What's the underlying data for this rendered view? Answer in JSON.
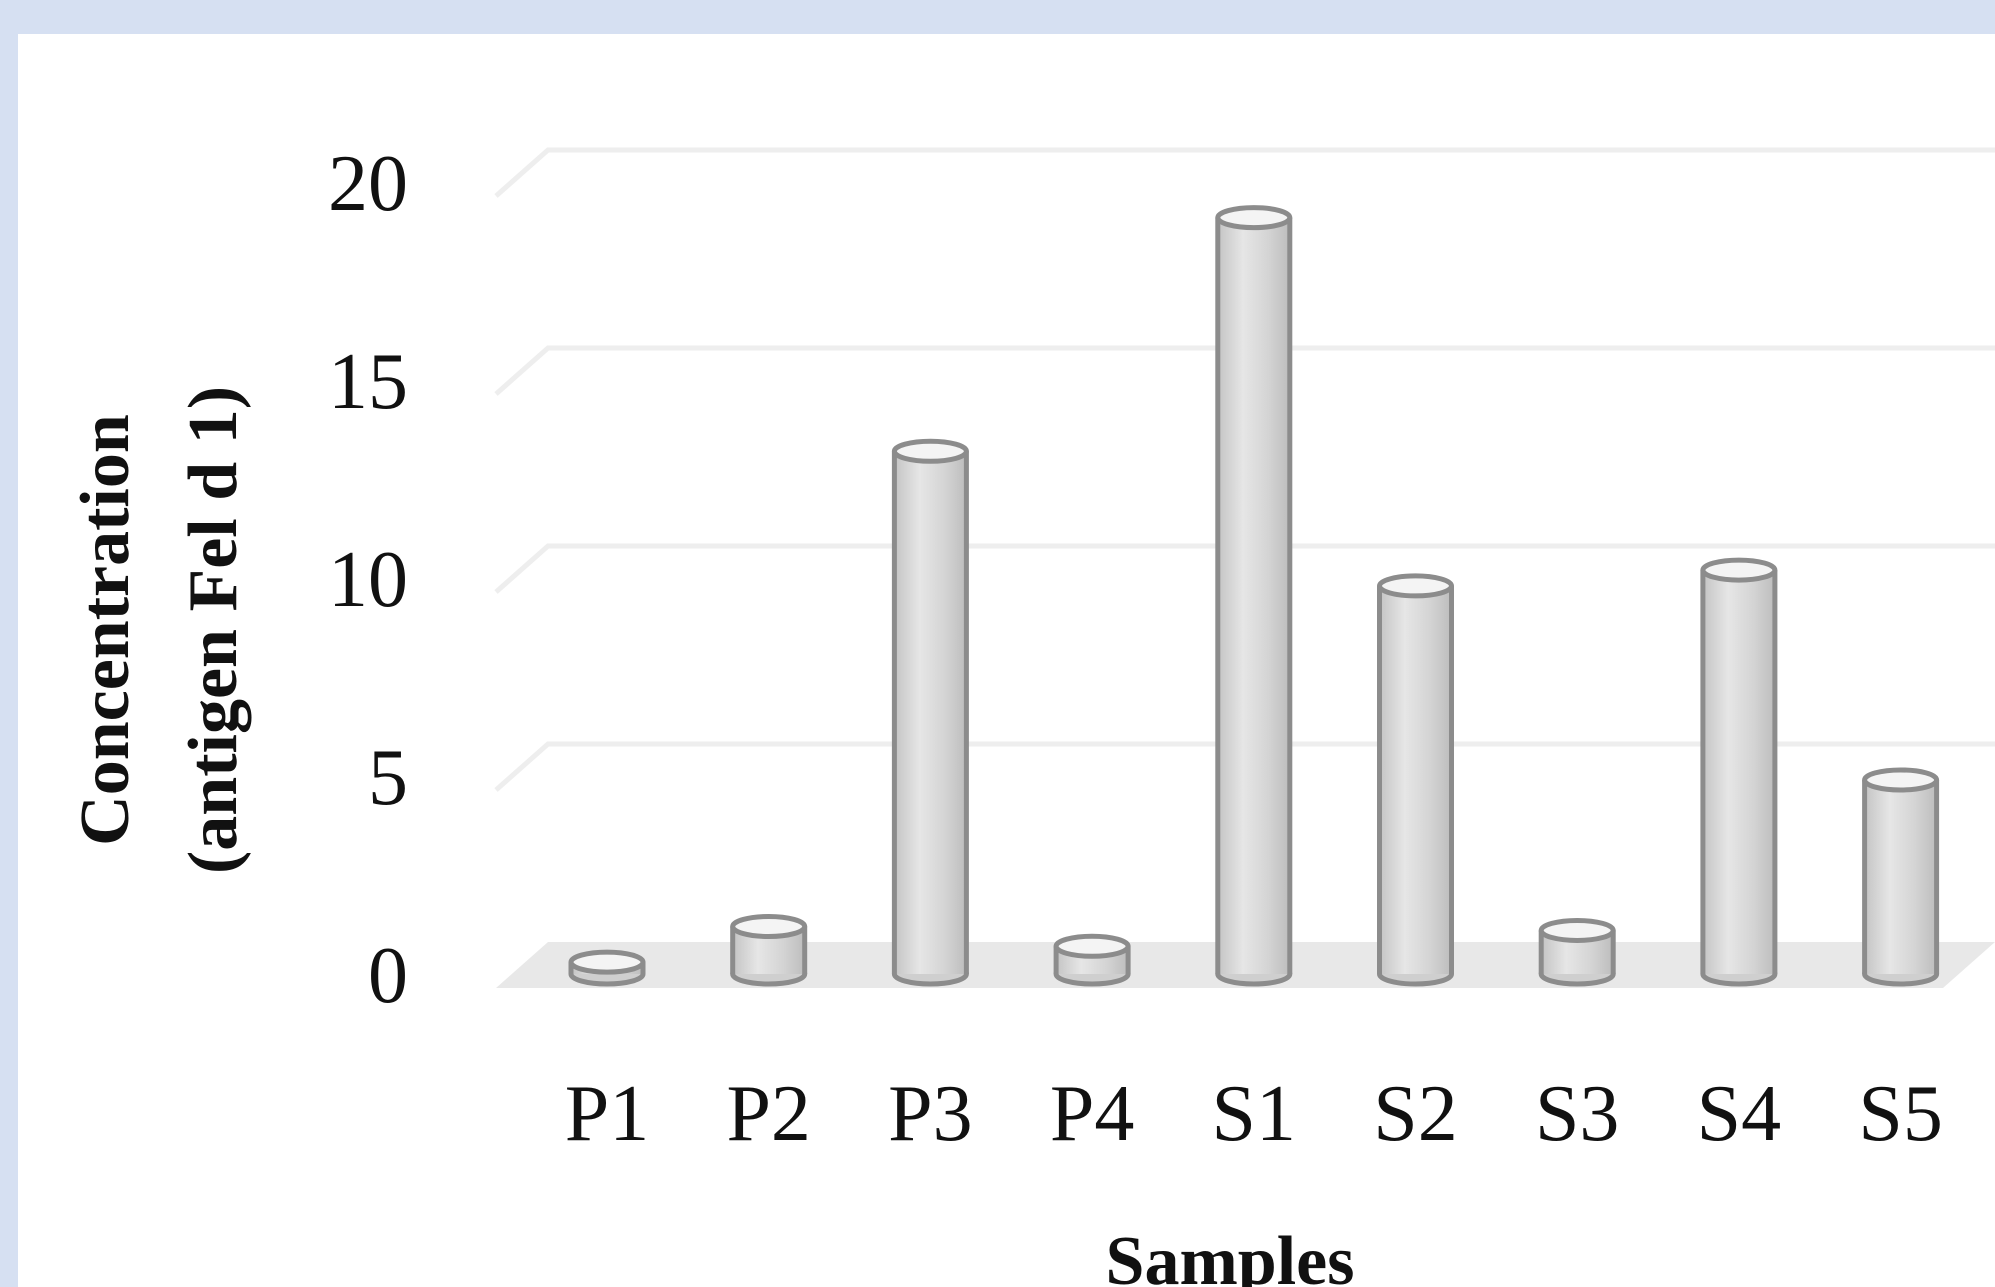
{
  "chart_data": {
    "type": "bar",
    "style": "3d-cylinder",
    "categories": [
      "P1",
      "P2",
      "P3",
      "P4",
      "S1",
      "S2",
      "S3",
      "S4",
      "S5"
    ],
    "values": [
      0.3,
      1.2,
      13.2,
      0.7,
      19.1,
      9.8,
      1.1,
      10.2,
      4.9
    ],
    "title": "",
    "xlabel": "Samples",
    "ylabel_lines": [
      "Concentration",
      "(antigen Fel d 1)"
    ],
    "ylim": [
      0,
      20
    ],
    "yticks": [
      "0",
      "5",
      "10",
      "15",
      "20"
    ],
    "grid": true,
    "legend": "none",
    "colors": {
      "background": "#d6e0f2",
      "plot": "#ffffff",
      "bar_fill": "#d9d9d9",
      "bar_stroke": "#8c8c8c",
      "grid": "#eeeeee",
      "floor": "#e8e8e8"
    }
  }
}
